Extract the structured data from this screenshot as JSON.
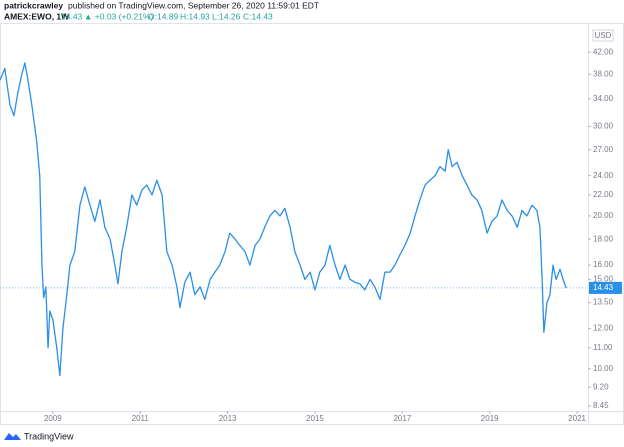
{
  "header": {
    "author": "patrickcrawley",
    "published": "published on TradingView.com, September 26, 2020 11:59:01 EDT",
    "symbol": "AMEX:EWO, 1W",
    "last": "14.43",
    "change": "▲ +0.03 (+0.21%)",
    "open": "O:14.89",
    "high": "H:14.93",
    "low": "L:14.26",
    "close": "C:14.43"
  },
  "footer": {
    "brand": "TradingView"
  },
  "chart_data": {
    "type": "line",
    "currency": "USD",
    "log_scale": true,
    "grid": false,
    "color": "#2a8fe6",
    "x": [
      2007.79,
      2007.9,
      2008.02,
      2008.11,
      2008.2,
      2008.29,
      2008.36,
      2008.43,
      2008.52,
      2008.63,
      2008.7,
      2008.75,
      2008.79,
      2008.84,
      2008.89,
      2008.93,
      2009.0,
      2009.09,
      2009.16,
      2009.23,
      2009.32,
      2009.39,
      2009.5,
      2009.62,
      2009.73,
      2009.85,
      2009.96,
      2010.08,
      2010.19,
      2010.31,
      2010.42,
      2010.49,
      2010.58,
      2010.69,
      2010.81,
      2010.92,
      2011.04,
      2011.15,
      2011.27,
      2011.38,
      2011.5,
      2011.61,
      2011.73,
      2011.84,
      2011.91,
      2012.02,
      2012.14,
      2012.25,
      2012.37,
      2012.48,
      2012.6,
      2012.71,
      2012.82,
      2012.94,
      2013.05,
      2013.17,
      2013.28,
      2013.4,
      2013.51,
      2013.63,
      2013.74,
      2013.85,
      2013.97,
      2014.08,
      2014.2,
      2014.31,
      2014.43,
      2014.54,
      2014.66,
      2014.77,
      2014.89,
      2015.0,
      2015.11,
      2015.23,
      2015.34,
      2015.46,
      2015.57,
      2015.69,
      2015.8,
      2015.92,
      2016.03,
      2016.14,
      2016.26,
      2016.37,
      2016.49,
      2016.6,
      2016.72,
      2016.83,
      2016.95,
      2017.06,
      2017.18,
      2017.29,
      2017.4,
      2017.52,
      2017.63,
      2017.75,
      2017.86,
      2017.98,
      2018.05,
      2018.14,
      2018.25,
      2018.37,
      2018.48,
      2018.59,
      2018.71,
      2018.82,
      2018.94,
      2019.05,
      2019.17,
      2019.28,
      2019.4,
      2019.51,
      2019.63,
      2019.74,
      2019.85,
      2019.97,
      2020.08,
      2020.15,
      2020.2,
      2020.24,
      2020.31,
      2020.38,
      2020.45,
      2020.52,
      2020.61,
      2020.68,
      2020.75
    ],
    "values": [
      37,
      39,
      33,
      31.5,
      35,
      38,
      40,
      37,
      33,
      28,
      24,
      16,
      13.8,
      14.5,
      11,
      13,
      12.5,
      11,
      9.7,
      12,
      14,
      16,
      17,
      21,
      22.8,
      21,
      19.5,
      21.5,
      19,
      18,
      16,
      14.7,
      17,
      19,
      22,
      21,
      22.5,
      23,
      22,
      23.5,
      22,
      17,
      16,
      14.5,
      13.2,
      14.8,
      15.5,
      14,
      14.5,
      13.7,
      15,
      15.5,
      16,
      17,
      18.5,
      18,
      17.5,
      17,
      16,
      17.5,
      18,
      19,
      20,
      20.5,
      20,
      20.7,
      19,
      17,
      16,
      15,
      15.5,
      14.3,
      15.5,
      16,
      17.5,
      16,
      15,
      16,
      15,
      14.8,
      14.7,
      14.3,
      15,
      14.5,
      13.7,
      15.5,
      15.5,
      16,
      16.8,
      17.5,
      18.5,
      20,
      21.5,
      23,
      23.5,
      24,
      25,
      24.5,
      27,
      25,
      25.5,
      24,
      23,
      22,
      21.5,
      20.5,
      18.5,
      19.5,
      20,
      21.5,
      20.5,
      20,
      19,
      20.5,
      20,
      21,
      20.5,
      19,
      15,
      11.8,
      13.5,
      14,
      16,
      15,
      15.7,
      15,
      14.43
    ],
    "last_price": 14.43,
    "xlim": [
      2007.79,
      2021.25
    ],
    "xticks": [
      2009,
      2011,
      2013,
      2015,
      2017,
      2019,
      2021
    ],
    "ylim": [
      7.93,
      48.6
    ],
    "yticks": [
      {
        "value": 42,
        "label": "42.00"
      },
      {
        "value": 38,
        "label": "38.00"
      },
      {
        "value": 34,
        "label": "34.00"
      },
      {
        "value": 30,
        "label": "30.00"
      },
      {
        "value": 27,
        "label": "27.00"
      },
      {
        "value": 24,
        "label": "24.00"
      },
      {
        "value": 22,
        "label": "22.00"
      },
      {
        "value": 20,
        "label": "20.00"
      },
      {
        "value": 18,
        "label": "18.00"
      },
      {
        "value": 16,
        "label": "16.00"
      },
      {
        "value": 15,
        "label": "15.00"
      },
      {
        "value": 13.5,
        "label": "13.50"
      },
      {
        "value": 12,
        "label": "12.00"
      },
      {
        "value": 11,
        "label": "11.00"
      },
      {
        "value": 10,
        "label": "10.00"
      },
      {
        "value": 9.2,
        "label": "9.20"
      },
      {
        "value": 8.45,
        "label": "8.45"
      }
    ]
  }
}
